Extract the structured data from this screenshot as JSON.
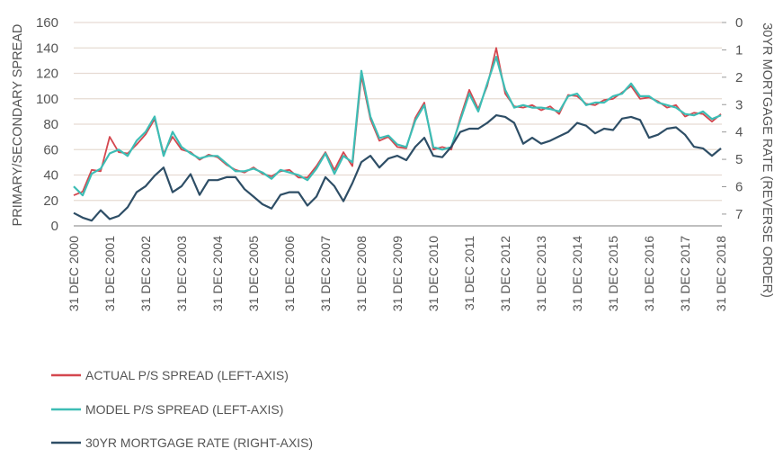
{
  "chart_data": {
    "type": "line",
    "left_axis": {
      "label": "PRIMARY/SECONDARY SPREAD",
      "range": [
        0,
        160
      ],
      "ticks": [
        "0",
        "20",
        "40",
        "60",
        "80",
        "100",
        "120",
        "140",
        "160"
      ]
    },
    "right_axis": {
      "label": "30YR MORTGAGE RATE (REVERSE ORDER)",
      "range": [
        0,
        7.43
      ],
      "reversed": true,
      "ticks": [
        "0",
        "1",
        "2",
        "3",
        "4",
        "5",
        "6",
        "7"
      ]
    },
    "x_tick_labels": [
      "31 DEC 2000",
      "31 DEC 2001",
      "31 DEC 2002",
      "31 DEC 2003",
      "31 DEC 2004",
      "31 DEC 2005",
      "31 DEC 2006",
      "31 DEC 2007",
      "31 DEC 2008",
      "31 DEC 2009",
      "31 DEC 2010",
      "31 DEC 2011",
      "31 DEC 2012",
      "31 DEC 2013",
      "31 DEC 2014",
      "31 DEC 2015",
      "31 DEC 2016",
      "31 DEC 2017",
      "31 DEC 2018"
    ],
    "grid": true,
    "legend_placement": "bottom-left",
    "x": [
      "2000-12",
      "2001-03",
      "2001-06",
      "2001-09",
      "2001-12",
      "2002-03",
      "2002-06",
      "2002-09",
      "2002-12",
      "2003-03",
      "2003-06",
      "2003-09",
      "2003-12",
      "2004-03",
      "2004-06",
      "2004-09",
      "2004-12",
      "2005-03",
      "2005-06",
      "2005-09",
      "2005-12",
      "2006-03",
      "2006-06",
      "2006-09",
      "2006-12",
      "2007-03",
      "2007-06",
      "2007-09",
      "2007-12",
      "2008-03",
      "2008-06",
      "2008-09",
      "2008-12",
      "2009-03",
      "2009-06",
      "2009-09",
      "2009-12",
      "2010-03",
      "2010-06",
      "2010-09",
      "2010-12",
      "2011-03",
      "2011-06",
      "2011-09",
      "2011-12",
      "2012-03",
      "2012-06",
      "2012-09",
      "2012-12",
      "2013-03",
      "2013-06",
      "2013-09",
      "2013-12",
      "2014-03",
      "2014-06",
      "2014-09",
      "2014-12",
      "2015-03",
      "2015-06",
      "2015-09",
      "2015-12",
      "2016-03",
      "2016-06",
      "2016-09",
      "2016-12",
      "2017-03",
      "2017-06",
      "2017-09",
      "2017-12",
      "2018-03",
      "2018-06",
      "2018-09",
      "2018-12"
    ],
    "series": [
      {
        "name": "ACTUAL P/S SPREAD (LEFT-AXIS)",
        "axis": "left",
        "color": "#d4474f",
        "values": [
          24,
          27,
          44,
          43,
          70,
          58,
          57,
          64,
          72,
          84,
          57,
          70,
          60,
          58,
          52,
          56,
          54,
          48,
          44,
          42,
          46,
          41,
          39,
          43,
          44,
          38,
          38,
          47,
          58,
          44,
          58,
          47,
          118,
          84,
          67,
          70,
          62,
          61,
          85,
          97,
          60,
          62,
          60,
          85,
          107,
          92,
          110,
          140,
          104,
          94,
          93,
          95,
          91,
          94,
          88,
          103,
          102,
          96,
          95,
          99,
          100,
          105,
          110,
          100,
          101,
          98,
          93,
          95,
          86,
          89,
          88,
          82,
          88
        ]
      },
      {
        "name": "MODEL P/S SPREAD (LEFT-AXIS)",
        "axis": "left",
        "color": "#3dbdb5",
        "values": [
          31,
          24,
          41,
          45,
          57,
          60,
          55,
          67,
          74,
          86,
          55,
          74,
          62,
          57,
          53,
          55,
          55,
          49,
          43,
          43,
          45,
          42,
          37,
          44,
          42,
          40,
          36,
          45,
          57,
          41,
          55,
          50,
          122,
          86,
          69,
          71,
          64,
          62,
          83,
          95,
          62,
          60,
          62,
          83,
          104,
          90,
          112,
          133,
          107,
          93,
          95,
          93,
          93,
          92,
          90,
          102,
          104,
          95,
          97,
          97,
          102,
          104,
          112,
          102,
          102,
          97,
          95,
          93,
          88,
          87,
          90,
          84,
          87
        ]
      },
      {
        "name": "30YR MORTGAGE RATE (RIGHT-AXIS)",
        "axis": "right",
        "color": "#2e4e66",
        "values": [
          6.96,
          7.13,
          7.24,
          6.86,
          7.18,
          7.07,
          6.75,
          6.2,
          5.98,
          5.6,
          5.3,
          6.2,
          5.98,
          5.54,
          6.3,
          5.76,
          5.76,
          5.65,
          5.65,
          6.09,
          6.36,
          6.64,
          6.8,
          6.3,
          6.2,
          6.2,
          6.69,
          6.36,
          5.65,
          5.98,
          6.53,
          5.87,
          5.1,
          4.87,
          5.3,
          4.97,
          4.87,
          5.03,
          4.54,
          4.21,
          4.87,
          4.92,
          4.54,
          4.0,
          3.88,
          3.88,
          3.67,
          3.39,
          3.45,
          3.67,
          4.43,
          4.21,
          4.43,
          4.32,
          4.16,
          4.0,
          3.67,
          3.77,
          4.05,
          3.88,
          3.93,
          3.51,
          3.45,
          3.56,
          4.21,
          4.1,
          3.88,
          3.83,
          4.1,
          4.54,
          4.6,
          4.87,
          4.6
        ]
      }
    ],
    "colors": {
      "grid": "#e6dbd3",
      "axis": "#999999",
      "text": "#555555"
    }
  }
}
